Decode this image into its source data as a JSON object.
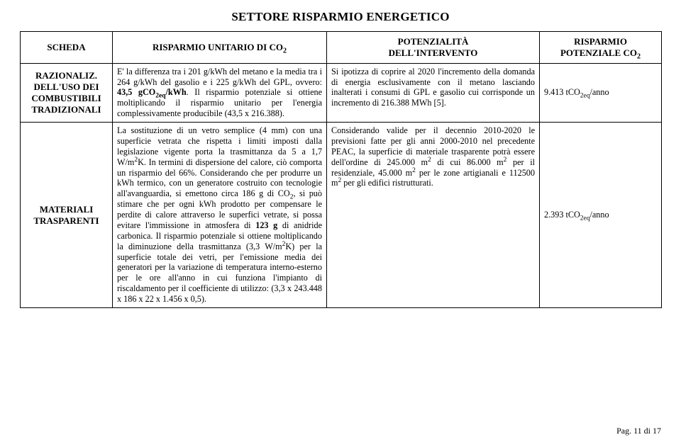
{
  "title": "SETTORE RISPARMIO ENERGETICO",
  "headers": {
    "c1": "SCHEDA",
    "c2": "RISPARMIO UNITARIO DI CO",
    "c2_sub": "2",
    "c3a": "POTENZIALITÀ",
    "c3b": "DELL'INTERVENTO",
    "c4a": "RISPARMIO",
    "c4b": "POTENZIALE CO",
    "c4b_sub": "2"
  },
  "rows": [
    {
      "scheda": "RAZIONALIZ. DELL'USO DEI COMBUSTIBILI TRADIZIONALI",
      "col2_html": "E' la differenza tra i 201 g/kWh del metano e la media tra i 264 g/kWh del gasolio e i 225 g/kWh del GPL, ovvero: <b>43,5 gCO<sub>2eq</sub>/kWh</b>. Il risparmio potenziale si ottiene moltiplicando il risparmio unitario per l'energia complessivamente producibile (43,5 x 216.388).",
      "col3_html": "Si ipotizza di coprire al 2020 l'incremento della domanda di energia esclusivamente con il metano lasciando inalterati i consumi di GPL e gasolio cui corrisponde un incremento di 216.388 MWh [5].",
      "col4_html": "9.413 tCO<sub>2eq</sub>/anno"
    },
    {
      "scheda": "MATERIALI TRASPARENTI",
      "col2_html": "La sostituzione di un vetro semplice (4 mm) con una superficie vetrata che rispetta i limiti imposti dalla legislazione vigente porta la trasmittanza da 5 a 1,7 W/m<sup>2</sup>K. In termini di dispersione del calore, ciò comporta un risparmio del 66%. Considerando che per produrre un kWh termico, con un generatore costruito con tecnologie all'avanguardia, si emettono circa 186 g di CO<sub>2</sub>, si può stimare che per ogni kWh prodotto per compensare le perdite di calore attraverso le superfici vetrate, si possa evitare l'immissione in atmosfera di <b>123 g</b> di anidride carbonica. Il risparmio potenziale si ottiene moltiplicando la diminuzione della trasmittanza (3,3 W/m<sup>2</sup>K) per la superficie totale dei vetri, per l'emissione media dei generatori per la variazione di temperatura interno-esterno per le ore all'anno in cui funziona l'impianto di riscaldamento per il coefficiente di utilizzo: (3,3 x 243.448 x 186 x 22 x 1.456 x 0,5).",
      "col3_html": "Considerando valide per il decennio 2010-2020 le previsioni fatte per gli anni 2000-2010 nel precedente PEAC, la superficie di materiale trasparente potrà essere dell'ordine di 245.000 m<sup>2</sup> di cui 86.000 m<sup>2</sup> per il residenziale, 45.000 m<sup>2</sup> per le zone artigianali e 112500 m<sup>2</sup> per gli edifici ristrutturati.",
      "col4_html": "2.393 tCO<sub>2eq</sub>/anno"
    }
  ],
  "footer": "Pag. 11 di 17"
}
